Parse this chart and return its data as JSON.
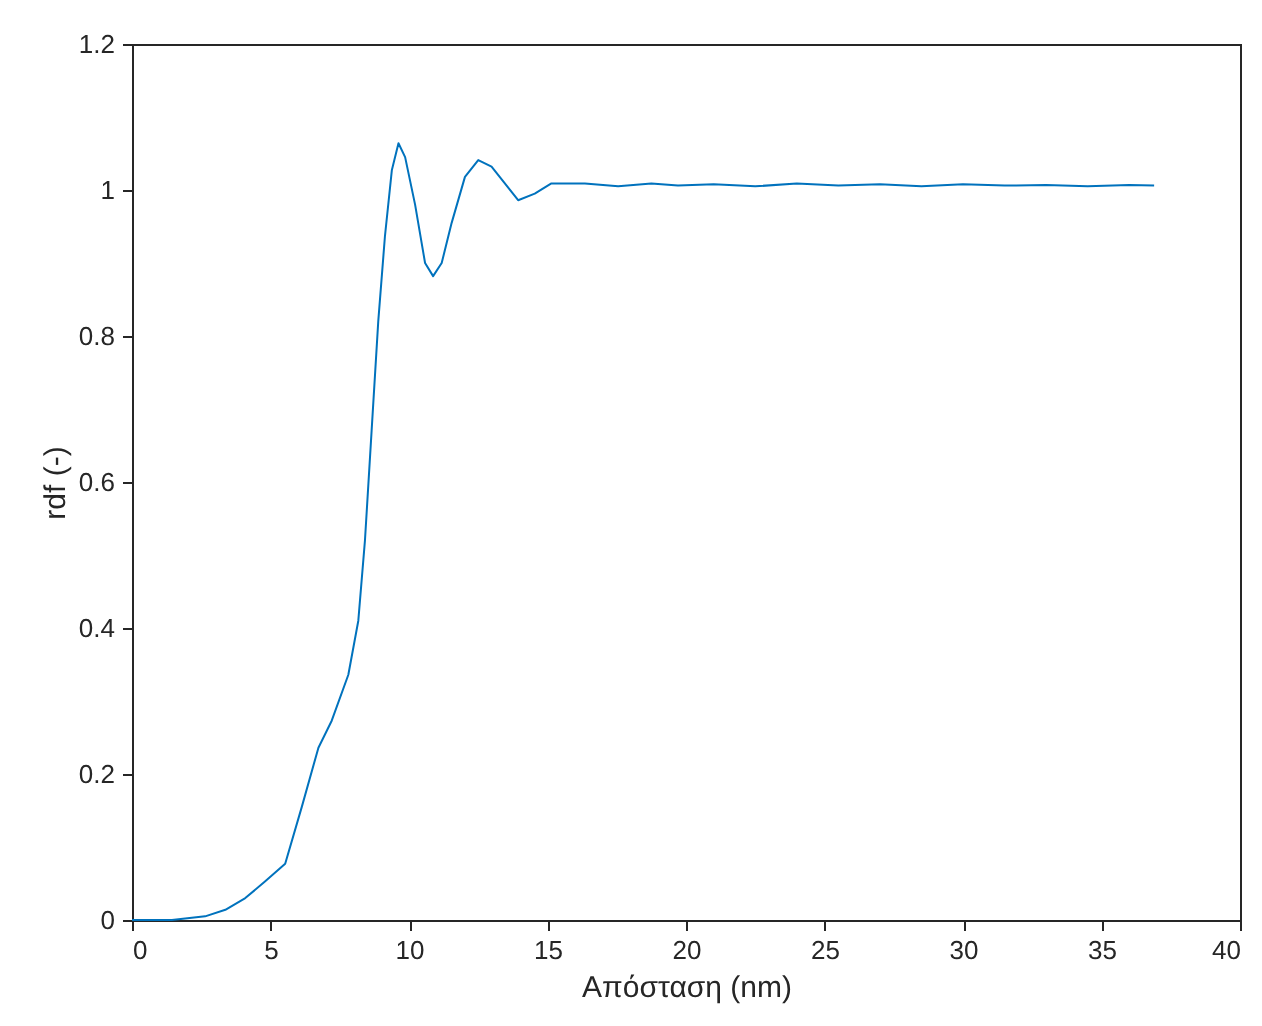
{
  "chart_data": {
    "type": "line",
    "xlabel": "Απόσταση (nm)",
    "ylabel": "rdf (-)",
    "xlim": [
      0,
      40
    ],
    "xticks": [
      0,
      5,
      10,
      15,
      20,
      25,
      30,
      35,
      40
    ],
    "ylim": [
      0,
      1.2
    ],
    "yticks": [
      0,
      0.2,
      0.4,
      0.6,
      0.8,
      1,
      1.2
    ],
    "grid": false,
    "marker": "none",
    "line_style": "solid",
    "x": [
      0,
      1.44,
      2.64,
      3.37,
      4.09,
      4.81,
      5.53,
      6.13,
      6.73,
      7.21,
      7.81,
      8.17,
      8.41,
      8.65,
      8.89,
      9.13,
      9.38,
      9.62,
      9.86,
      10.22,
      10.58,
      10.87,
      11.18,
      11.54,
      12.02,
      12.5,
      12.98,
      13.46,
      13.94,
      14.54,
      15.14,
      16.35,
      17.55,
      18.75,
      19.71,
      21,
      22.5,
      24,
      25.5,
      27,
      28.5,
      30,
      31.5,
      33,
      34.5,
      36,
      36.9
    ],
    "series": [
      {
        "color": "#0072bd",
        "values": [
          0,
          0,
          0.005,
          0.014,
          0.03,
          0.053,
          0.077,
          0.155,
          0.236,
          0.273,
          0.336,
          0.41,
          0.52,
          0.67,
          0.82,
          0.936,
          1.027,
          1.064,
          1.045,
          0.98,
          0.9,
          0.882,
          0.9,
          0.955,
          1.018,
          1.041,
          1.032,
          1.009,
          0.986,
          0.995,
          1.009,
          1.009,
          1.005,
          1.009,
          1.006,
          1.008,
          1.005,
          1.009,
          1.006,
          1.008,
          1.005,
          1.008,
          1.006,
          1.007,
          1.005,
          1.007,
          1.006
        ]
      }
    ]
  }
}
